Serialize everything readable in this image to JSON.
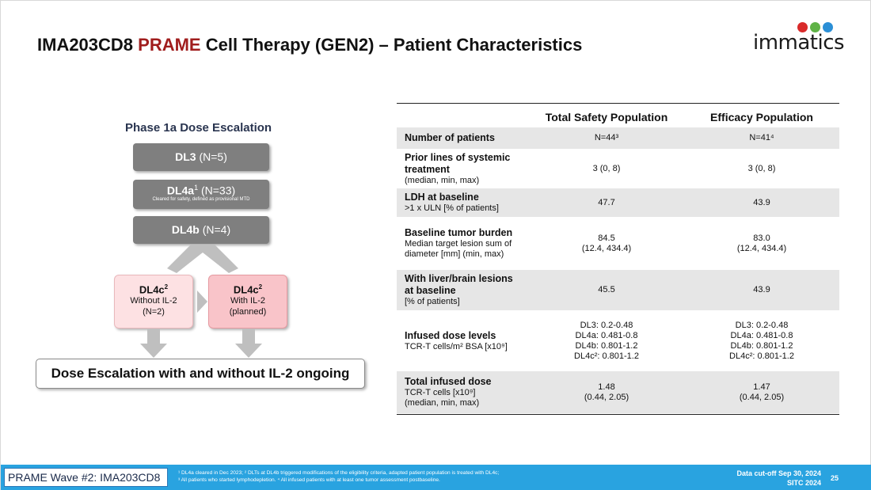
{
  "title": {
    "prefix": "IMA203CD8 ",
    "accent": "PRAME",
    "suffix": " Cell Therapy (GEN2) – Patient Characteristics"
  },
  "logo": {
    "text": "immatics",
    "dot_colors": [
      "#d92a2a",
      "#5fb246",
      "#2b8fd6"
    ]
  },
  "flow": {
    "title": "Phase 1a Dose Escalation",
    "dl3": {
      "name": "DL3",
      "n": "(N=5)"
    },
    "dl4a": {
      "name": "DL4a",
      "sup": "1",
      "n": "(N=33)",
      "note": "Cleared for safety, defined as provisional MTD"
    },
    "dl4b": {
      "name": "DL4b",
      "n": "(N=4)"
    },
    "dl4c_a": {
      "name": "DL4c",
      "sup": "2",
      "line1": "Without IL-2",
      "line2": "(N=2)"
    },
    "dl4c_b": {
      "name": "DL4c",
      "sup": "2",
      "line1": "With IL-2",
      "line2": "(planned)"
    },
    "ongoing": "Dose Escalation with and without IL-2 ongoing"
  },
  "table": {
    "headers": [
      "",
      "Total Safety Population",
      "Efficacy Population"
    ],
    "rows": [
      {
        "label_bold": "Number of patients",
        "label_rest": [],
        "safety": [
          "N=44³"
        ],
        "efficacy": [
          "N=41⁴"
        ]
      },
      {
        "label_bold": "Prior lines of systemic treatment",
        "label_rest": [
          "(median, min, max)"
        ],
        "safety": [
          "3 (0, 8)"
        ],
        "efficacy": [
          "3 (0, 8)"
        ]
      },
      {
        "label_bold": "LDH at baseline",
        "label_rest": [
          ">1 x ULN [% of patients]"
        ],
        "safety": [
          "47.7"
        ],
        "efficacy": [
          "43.9"
        ]
      },
      {
        "label_bold": "Baseline tumor burden",
        "label_rest": [
          "Median target lesion sum of diameter [mm] (min, max)"
        ],
        "safety": [
          "84.5",
          "(12.4, 434.4)"
        ],
        "efficacy": [
          "83.0",
          "(12.4, 434.4)"
        ]
      },
      {
        "label_bold": "With liver/brain lesions at baseline",
        "label_rest": [
          "[% of patients]"
        ],
        "safety": [
          "45.5"
        ],
        "efficacy": [
          "43.9"
        ]
      },
      {
        "label_bold": "Infused dose levels",
        "label_rest": [
          "TCR-T cells/m² BSA [x10⁹]"
        ],
        "safety": [
          "DL3: 0.2-0.48",
          "DL4a: 0.481-0.8",
          "DL4b: 0.801-1.2",
          "DL4c²: 0.801-1.2"
        ],
        "efficacy": [
          "DL3: 0.2-0.48",
          "DL4a: 0.481-0.8",
          "DL4b: 0.801-1.2",
          "DL4c²: 0.801-1.2"
        ]
      },
      {
        "label_bold": "Total infused dose",
        "label_rest": [
          "TCR-T cells [x10⁹]",
          "(median, min, max)"
        ],
        "safety": [
          "1.48",
          "(0.44, 2.05)"
        ],
        "efficacy": [
          "1.47",
          "(0.44, 2.05)"
        ]
      }
    ]
  },
  "footer": {
    "label": "PRAME Wave #2: IMA203CD8",
    "footnote_line1": "¹ DL4a cleared in Dec 2023; ² DLTs at DL4b triggered modifications of the eligibility criteria, adapted patient population is treated with DL4c;",
    "footnote_line2": "³ All patients who started lymphodepletion. ⁴ All infused patients with at least one tumor assessment postbaseline.",
    "cutoff_line1": "Data cut-off Sep 30, 2024",
    "cutoff_line2": "SITC 2024",
    "page": "25"
  }
}
